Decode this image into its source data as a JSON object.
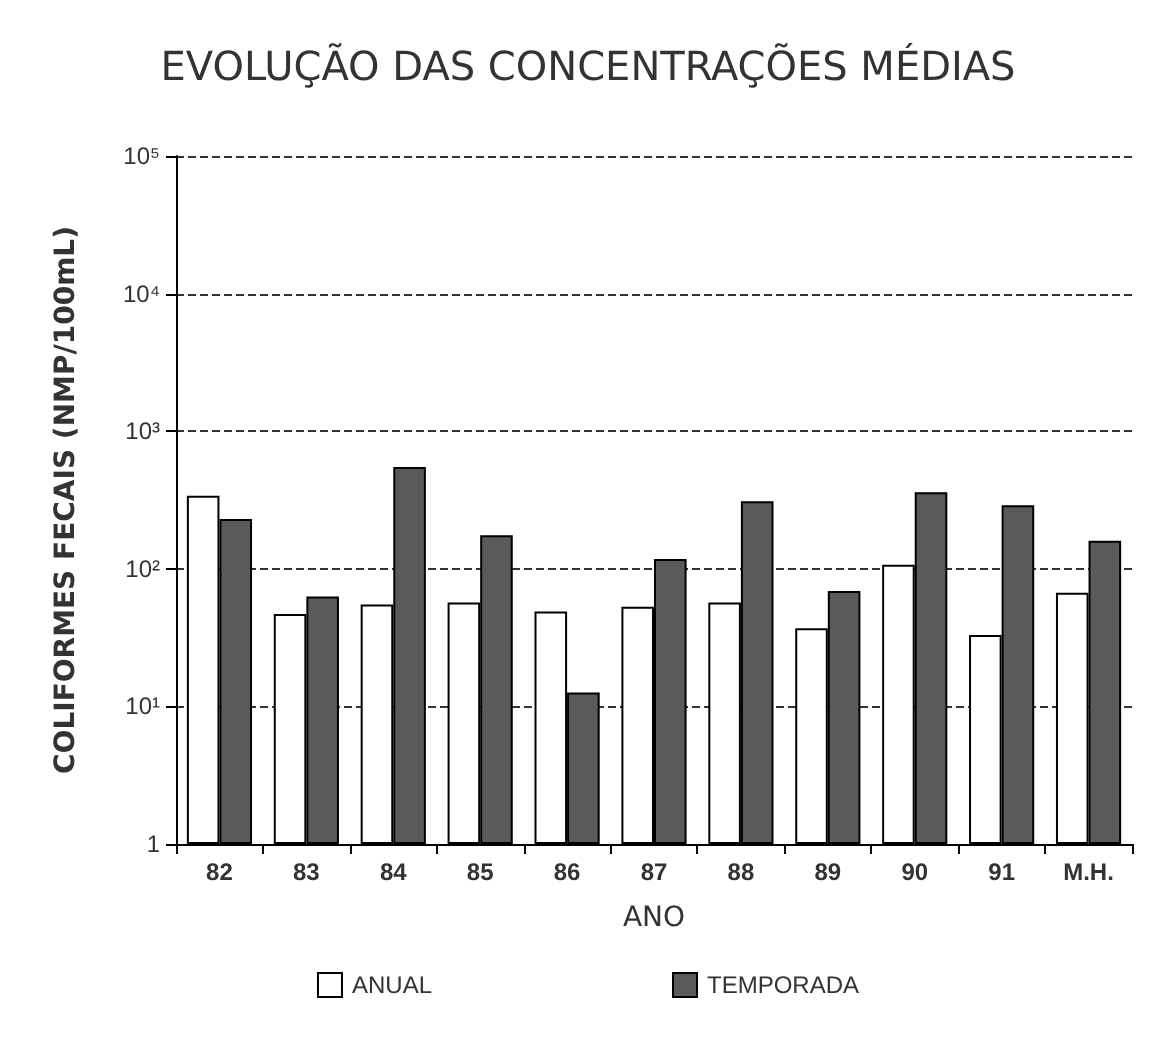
{
  "chart_data": {
    "type": "bar",
    "title": "EVOLUÇÃO DAS CONCENTRAÇÕES MÉDIAS",
    "xlabel": "ANO",
    "ylabel": "COLIFORMES FECAIS (NMP/100mL)",
    "categories": [
      "82",
      "83",
      "84",
      "85",
      "86",
      "87",
      "88",
      "89",
      "90",
      "91",
      "M.H."
    ],
    "series": [
      {
        "name": "ANUAL",
        "color": "#ffffff",
        "values": [
          340,
          47,
          55,
          57,
          49,
          53,
          57,
          37,
          107,
          33,
          67
        ]
      },
      {
        "name": "TEMPORADA",
        "color": "#5a5a5a",
        "values": [
          230,
          63,
          550,
          175,
          12.6,
          118,
          310,
          69,
          360,
          290,
          160
        ]
      }
    ],
    "log": "y",
    "ylim": [
      1,
      100000
    ],
    "yticks": [
      1,
      {
        "value": 10,
        "label": "10¹"
      },
      {
        "value": 100,
        "label": "10²"
      },
      {
        "value": 1000,
        "label": "10³"
      },
      {
        "value": 10000,
        "label": "10⁴"
      },
      {
        "value": 100000,
        "label": "10⁵"
      }
    ],
    "grid": "y",
    "legend": "bottom"
  }
}
